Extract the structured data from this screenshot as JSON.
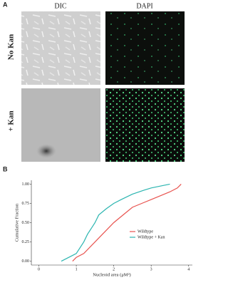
{
  "panel_a": {
    "label": "A",
    "columns": [
      "DIC",
      "DAPI"
    ],
    "rows": [
      "No Kan",
      "+ Kan"
    ]
  },
  "panel_b": {
    "label": "B"
  },
  "chart_data": {
    "type": "line",
    "xlabel": "Nucleoid area (μM²)",
    "ylabel": "Cumulative Fraction",
    "xlim": [
      -0.2,
      4.1
    ],
    "xticks": [
      0,
      1,
      2,
      3,
      4
    ],
    "ylim": [
      -0.05,
      1.05
    ],
    "yticks": [
      {
        "value": 0,
        "label": "0.00"
      },
      {
        "value": 0.25,
        "label": "0.25"
      },
      {
        "value": 0.5,
        "label": "0.50"
      },
      {
        "value": 0.75,
        "label": "0.75"
      },
      {
        "value": 1,
        "label": "1.00"
      }
    ],
    "series": [
      {
        "name": "Wildtype",
        "color": "#e8534f",
        "x": [
          0.9,
          1.0,
          1.2,
          1.4,
          1.5,
          1.7,
          2.0,
          2.3,
          2.5,
          2.8,
          3.0,
          3.3,
          3.5,
          3.7,
          3.8
        ],
        "values": [
          0,
          0.05,
          0.1,
          0.2,
          0.25,
          0.35,
          0.5,
          0.62,
          0.7,
          0.76,
          0.8,
          0.86,
          0.9,
          0.95,
          1.0
        ]
      },
      {
        "name": "Wildtype + Kan",
        "color": "#2bb5b0",
        "x": [
          0.6,
          0.8,
          1.0,
          1.2,
          1.3,
          1.5,
          1.6,
          1.8,
          2.0,
          2.2,
          2.5,
          2.8,
          3.0,
          3.3,
          3.5
        ],
        "values": [
          0,
          0.05,
          0.1,
          0.25,
          0.35,
          0.5,
          0.6,
          0.68,
          0.75,
          0.8,
          0.87,
          0.92,
          0.95,
          0.98,
          1.0
        ]
      }
    ],
    "legend": "lower right"
  }
}
